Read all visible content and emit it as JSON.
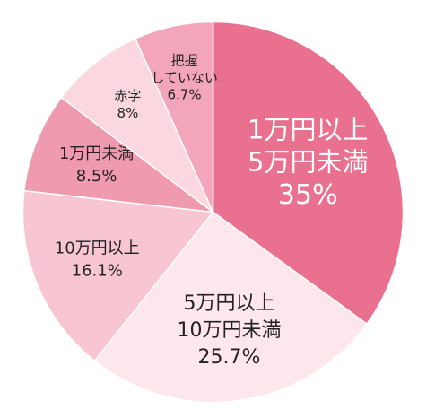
{
  "chart_data": {
    "type": "pie",
    "title": "",
    "start_angle_deg": 0,
    "direction": "clockwise",
    "slices": [
      {
        "label_lines": [
          "1万円以上",
          "5万円未満"
        ],
        "value_text": "35%",
        "value": 35,
        "color": "#e9718f",
        "text_color": "#ffffff",
        "emphasis": "large"
      },
      {
        "label_lines": [
          "5万円以上",
          "10万円未満"
        ],
        "value_text": "25.7%",
        "value": 25.7,
        "color": "#fde6ec",
        "text_color": "#222222",
        "emphasis": "medium"
      },
      {
        "label_lines": [
          "10万円以上"
        ],
        "value_text": "16.1%",
        "value": 16.1,
        "color": "#f8c6d2",
        "text_color": "#222222",
        "emphasis": "small"
      },
      {
        "label_lines": [
          "1万円未満"
        ],
        "value_text": "8.5%",
        "value": 8.5,
        "color": "#ef9aaf",
        "text_color": "#222222",
        "emphasis": "small"
      },
      {
        "label_lines": [
          "赤字"
        ],
        "value_text": "8%",
        "value": 8,
        "color": "#fbd7e0",
        "text_color": "#222222",
        "emphasis": "tiny"
      },
      {
        "label_lines": [
          "把握",
          "していない"
        ],
        "value_text": "6.7%",
        "value": 6.7,
        "color": "#f3a6ba",
        "text_color": "#222222",
        "emphasis": "tiny"
      }
    ]
  }
}
